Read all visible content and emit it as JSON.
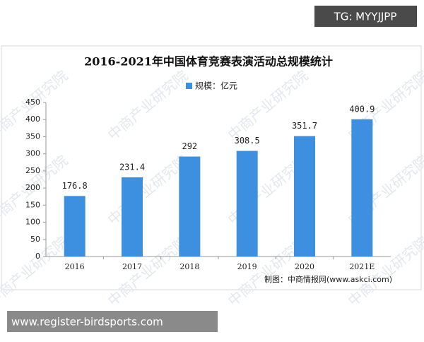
{
  "chart_data": {
    "type": "bar",
    "title": "2016-2021年中国体育竞赛表演活动总规模统计",
    "categories": [
      "2016",
      "2017",
      "2018",
      "2019",
      "2020",
      "2021E"
    ],
    "series": [
      {
        "name": "规模：亿元",
        "color": "#3d8fe0",
        "values": [
          176.8,
          231.4,
          292,
          308.5,
          351.7,
          400.9
        ]
      }
    ],
    "ylim": [
      0,
      450
    ],
    "yticks": [
      0,
      50,
      100,
      150,
      200,
      250,
      300,
      350,
      400,
      450
    ],
    "source": "制图：中商情报网(www.askci.com)",
    "watermark": "中商产业研究院"
  },
  "overlays": {
    "tag": "TG: MYYJJPP",
    "url": "www.register-birdsports.com"
  }
}
